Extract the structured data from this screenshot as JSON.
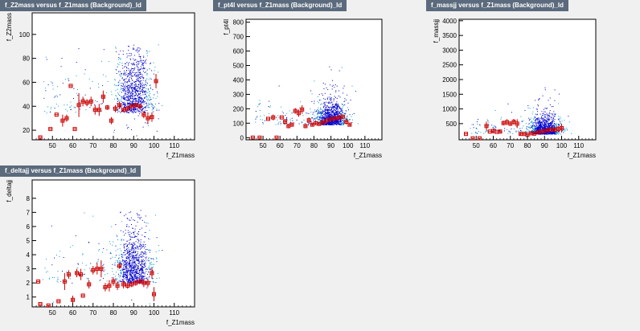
{
  "panels": [
    {
      "title": "f_Z2mass versus f_Z1mass (Background)_Id"
    },
    {
      "title": "f_pt4l versus f_Z1mass (Background)_Id"
    },
    {
      "title": "f_massjj versus f_Z1mass (Background)_Id"
    },
    {
      "title": "f_deltajj versus f_Z1mass (Background)_Id"
    }
  ],
  "colors": {
    "scatter_dark": "#0000cc",
    "scatter_light": "#00a0c8",
    "profile": "#cc0000",
    "frame": "#000000"
  },
  "chart_data": [
    {
      "type": "scatter",
      "title": "f_Z2mass versus f_Z1mass (Background)_Id",
      "xlabel": "f_Z1mass",
      "ylabel": "f_Z2mass",
      "xlim": [
        40,
        120
      ],
      "ylim": [
        12,
        118
      ],
      "xticks": [
        50,
        60,
        70,
        80,
        90,
        100,
        110
      ],
      "yticks": [
        20,
        40,
        60,
        80,
        100
      ],
      "scatter": {
        "x_center": 90,
        "x_spread": 4.5,
        "y_min": 15,
        "y_max": 92,
        "y_mean": 35,
        "y_spread": 22,
        "count": 1100
      },
      "profile": [
        {
          "x": 44,
          "y": 14,
          "err": 0
        },
        {
          "x": 49,
          "y": 21,
          "err": 0
        },
        {
          "x": 52,
          "y": 33,
          "err": 0
        },
        {
          "x": 55,
          "y": 28,
          "err": 5
        },
        {
          "x": 57,
          "y": 30,
          "err": 3
        },
        {
          "x": 59,
          "y": 57,
          "err": 0
        },
        {
          "x": 61,
          "y": 21,
          "err": 0
        },
        {
          "x": 63,
          "y": 41,
          "err": 10
        },
        {
          "x": 65,
          "y": 44,
          "err": 4
        },
        {
          "x": 67,
          "y": 43,
          "err": 3
        },
        {
          "x": 69,
          "y": 44,
          "err": 4
        },
        {
          "x": 71,
          "y": 37,
          "err": 4
        },
        {
          "x": 73,
          "y": 37,
          "err": 5
        },
        {
          "x": 75,
          "y": 48,
          "err": 5
        },
        {
          "x": 77,
          "y": 39,
          "err": 2
        },
        {
          "x": 79,
          "y": 28,
          "err": 3
        },
        {
          "x": 81,
          "y": 38,
          "err": 3
        },
        {
          "x": 83,
          "y": 41,
          "err": 3
        },
        {
          "x": 85,
          "y": 37,
          "err": 2
        },
        {
          "x": 87,
          "y": 38,
          "err": 2
        },
        {
          "x": 89,
          "y": 40,
          "err": 2
        },
        {
          "x": 91,
          "y": 41,
          "err": 2
        },
        {
          "x": 93,
          "y": 40,
          "err": 2
        },
        {
          "x": 95,
          "y": 33,
          "err": 3
        },
        {
          "x": 97,
          "y": 30,
          "err": 5
        },
        {
          "x": 99,
          "y": 31,
          "err": 4
        },
        {
          "x": 101,
          "y": 61,
          "err": 6
        }
      ]
    },
    {
      "type": "scatter",
      "title": "f_pt4l versus f_Z1mass (Background)_Id",
      "xlabel": "f_Z1mass",
      "ylabel": "f_pt4l",
      "xlim": [
        40,
        120
      ],
      "ylim": [
        -15,
        820
      ],
      "xticks": [
        50,
        60,
        70,
        80,
        90,
        100,
        110
      ],
      "yticks": [
        0,
        100,
        200,
        300,
        400,
        500,
        600,
        700,
        800
      ],
      "scatter": {
        "x_center": 90,
        "x_spread": 4.5,
        "y_min": 0,
        "y_max": 620,
        "y_mean": 90,
        "y_spread": 70,
        "count": 1100
      },
      "profile": [
        {
          "x": 44,
          "y": 0,
          "err": 0
        },
        {
          "x": 48,
          "y": 0,
          "err": 0
        },
        {
          "x": 53,
          "y": 130,
          "err": 0
        },
        {
          "x": 56,
          "y": 140,
          "err": 20
        },
        {
          "x": 58,
          "y": 0,
          "err": 0
        },
        {
          "x": 61,
          "y": 140,
          "err": 0
        },
        {
          "x": 63,
          "y": 110,
          "err": 20
        },
        {
          "x": 65,
          "y": 80,
          "err": 15
        },
        {
          "x": 67,
          "y": 90,
          "err": 10
        },
        {
          "x": 69,
          "y": 185,
          "err": 20
        },
        {
          "x": 71,
          "y": 170,
          "err": 25
        },
        {
          "x": 73,
          "y": 195,
          "err": 30
        },
        {
          "x": 75,
          "y": 80,
          "err": 15
        },
        {
          "x": 77,
          "y": 120,
          "err": 20
        },
        {
          "x": 79,
          "y": 90,
          "err": 10
        },
        {
          "x": 81,
          "y": 100,
          "err": 10
        },
        {
          "x": 83,
          "y": 95,
          "err": 8
        },
        {
          "x": 85,
          "y": 105,
          "err": 8
        },
        {
          "x": 87,
          "y": 115,
          "err": 8
        },
        {
          "x": 89,
          "y": 125,
          "err": 6
        },
        {
          "x": 91,
          "y": 130,
          "err": 6
        },
        {
          "x": 93,
          "y": 135,
          "err": 8
        },
        {
          "x": 95,
          "y": 140,
          "err": 10
        },
        {
          "x": 97,
          "y": 145,
          "err": 15
        },
        {
          "x": 99,
          "y": 110,
          "err": 20
        },
        {
          "x": 101,
          "y": 90,
          "err": 10
        }
      ]
    },
    {
      "type": "scatter",
      "title": "f_massjj versus f_Z1mass (Background)_Id",
      "xlabel": "f_Z1mass",
      "ylabel": "f_massjj",
      "xlim": [
        40,
        120
      ],
      "ylim": [
        -50,
        4050
      ],
      "xticks": [
        50,
        60,
        70,
        80,
        90,
        100,
        110
      ],
      "yticks": [
        500,
        1000,
        1500,
        2000,
        2500,
        3000,
        3500,
        4000
      ],
      "scatter": {
        "x_center": 90,
        "x_spread": 4.5,
        "y_min": 0,
        "y_max": 2600,
        "y_mean": 150,
        "y_spread": 250,
        "count": 1100
      },
      "profile": [
        {
          "x": 44,
          "y": 150,
          "err": 0
        },
        {
          "x": 48,
          "y": 0,
          "err": 0
        },
        {
          "x": 52,
          "y": 0,
          "err": 0
        },
        {
          "x": 56,
          "y": 420,
          "err": 150
        },
        {
          "x": 58,
          "y": 230,
          "err": 0
        },
        {
          "x": 60,
          "y": 250,
          "err": 80
        },
        {
          "x": 62,
          "y": 220,
          "err": 0
        },
        {
          "x": 64,
          "y": 230,
          "err": 60
        },
        {
          "x": 66,
          "y": 520,
          "err": 80
        },
        {
          "x": 68,
          "y": 550,
          "err": 100
        },
        {
          "x": 70,
          "y": 500,
          "err": 80
        },
        {
          "x": 72,
          "y": 560,
          "err": 100
        },
        {
          "x": 74,
          "y": 500,
          "err": 150
        },
        {
          "x": 76,
          "y": 150,
          "err": 50
        },
        {
          "x": 78,
          "y": 150,
          "err": 40
        },
        {
          "x": 80,
          "y": 120,
          "err": 30
        },
        {
          "x": 82,
          "y": 170,
          "err": 40
        },
        {
          "x": 84,
          "y": 160,
          "err": 30
        },
        {
          "x": 86,
          "y": 200,
          "err": 30
        },
        {
          "x": 88,
          "y": 230,
          "err": 30
        },
        {
          "x": 90,
          "y": 250,
          "err": 40
        },
        {
          "x": 92,
          "y": 280,
          "err": 50
        },
        {
          "x": 94,
          "y": 300,
          "err": 60
        },
        {
          "x": 96,
          "y": 290,
          "err": 80
        },
        {
          "x": 98,
          "y": 320,
          "err": 100
        },
        {
          "x": 100,
          "y": 350,
          "err": 150
        }
      ]
    },
    {
      "type": "scatter",
      "title": "f_deltajj versus f_Z1mass (Background)_Id",
      "xlabel": "f_Z1mass",
      "ylabel": "f_deltajj",
      "xlim": [
        40,
        120
      ],
      "ylim": [
        0.3,
        9.3
      ],
      "xticks": [
        50,
        60,
        70,
        80,
        90,
        100,
        110
      ],
      "yticks": [
        1,
        2,
        3,
        4,
        5,
        6,
        7,
        8
      ],
      "scatter": {
        "x_center": 90,
        "x_spread": 4.5,
        "y_min": 0.4,
        "y_max": 7.2,
        "y_mean": 2.0,
        "y_spread": 1.6,
        "count": 1100
      },
      "profile": [
        {
          "x": 43,
          "y": 2.1,
          "err": 0
        },
        {
          "x": 44,
          "y": 0.5,
          "err": 0
        },
        {
          "x": 48,
          "y": 0.4,
          "err": 0
        },
        {
          "x": 53,
          "y": 0.7,
          "err": 0
        },
        {
          "x": 56,
          "y": 2.1,
          "err": 0.6
        },
        {
          "x": 58,
          "y": 2.6,
          "err": 0.3
        },
        {
          "x": 60,
          "y": 0.8,
          "err": 0.3
        },
        {
          "x": 62,
          "y": 2.7,
          "err": 0.3
        },
        {
          "x": 64,
          "y": 2.6,
          "err": 0.4
        },
        {
          "x": 65,
          "y": 1.1,
          "err": 0
        },
        {
          "x": 68,
          "y": 1.9,
          "err": 0.3
        },
        {
          "x": 70,
          "y": 2.9,
          "err": 0.3
        },
        {
          "x": 72,
          "y": 3.0,
          "err": 0.4
        },
        {
          "x": 74,
          "y": 3.0,
          "err": 0.6
        },
        {
          "x": 76,
          "y": 1.7,
          "err": 0.3
        },
        {
          "x": 78,
          "y": 1.8,
          "err": 0.4
        },
        {
          "x": 80,
          "y": 2.1,
          "err": 0.3
        },
        {
          "x": 82,
          "y": 1.8,
          "err": 0.3
        },
        {
          "x": 83,
          "y": 3.2,
          "err": 0.2
        },
        {
          "x": 85,
          "y": 1.9,
          "err": 0.3
        },
        {
          "x": 87,
          "y": 1.8,
          "err": 0.2
        },
        {
          "x": 89,
          "y": 1.9,
          "err": 0.2
        },
        {
          "x": 91,
          "y": 2.0,
          "err": 0.2
        },
        {
          "x": 93,
          "y": 2.1,
          "err": 0.2
        },
        {
          "x": 95,
          "y": 2.0,
          "err": 0.3
        },
        {
          "x": 97,
          "y": 2.0,
          "err": 0.3
        },
        {
          "x": 99,
          "y": 2.7,
          "err": 0.4
        },
        {
          "x": 100,
          "y": 1.2,
          "err": 0.5
        }
      ]
    }
  ]
}
